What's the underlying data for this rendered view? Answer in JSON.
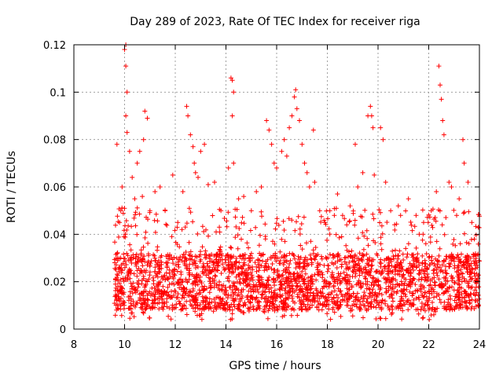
{
  "chart_data": {
    "type": "scatter",
    "title": "Day 289 of 2023, Rate Of TEC Index for receiver riga",
    "xlabel": "GPS time / hours",
    "ylabel": "ROTI / TECUs",
    "xlim": [
      8,
      24
    ],
    "ylim": [
      0,
      0.12
    ],
    "x_ticks": [
      8,
      10,
      12,
      14,
      16,
      18,
      20,
      22,
      24
    ],
    "x_tick_labels": [
      "8",
      "10",
      "12",
      "14",
      "16",
      "18",
      "20",
      "22",
      "24"
    ],
    "y_ticks": [
      0,
      0.02,
      0.04,
      0.06,
      0.08,
      0.1,
      0.12
    ],
    "y_tick_labels": [
      "0",
      "0.02",
      "0.04",
      "0.06",
      "0.08",
      "0.1",
      "0.12"
    ],
    "grid": true,
    "marker": "+",
    "series": [
      {
        "name": "ROTI riga",
        "color": "#ff0000",
        "points": [
          [
            9.7,
            0.078
          ],
          [
            9.8,
            0.045
          ],
          [
            9.85,
            0.05
          ],
          [
            9.9,
            0.06
          ],
          [
            10.0,
            0.118
          ],
          [
            10.05,
            0.12
          ],
          [
            10.05,
            0.111
          ],
          [
            10.1,
            0.1
          ],
          [
            10.05,
            0.09
          ],
          [
            10.1,
            0.083
          ],
          [
            10.2,
            0.075
          ],
          [
            10.3,
            0.064
          ],
          [
            10.4,
            0.055
          ],
          [
            10.5,
            0.07
          ],
          [
            10.6,
            0.075
          ],
          [
            10.75,
            0.08
          ],
          [
            10.8,
            0.092
          ],
          [
            10.9,
            0.089
          ],
          [
            10.7,
            0.056
          ],
          [
            11.0,
            0.05
          ],
          [
            11.2,
            0.058
          ],
          [
            11.4,
            0.06
          ],
          [
            11.6,
            0.05
          ],
          [
            11.9,
            0.065
          ],
          [
            12.1,
            0.045
          ],
          [
            12.3,
            0.058
          ],
          [
            12.45,
            0.094
          ],
          [
            12.5,
            0.09
          ],
          [
            12.6,
            0.082
          ],
          [
            12.7,
            0.077
          ],
          [
            12.75,
            0.07
          ],
          [
            12.8,
            0.066
          ],
          [
            12.9,
            0.064
          ],
          [
            13.0,
            0.075
          ],
          [
            13.15,
            0.078
          ],
          [
            13.3,
            0.061
          ],
          [
            13.55,
            0.062
          ],
          [
            13.8,
            0.05
          ],
          [
            14.1,
            0.068
          ],
          [
            14.2,
            0.106
          ],
          [
            14.25,
            0.105
          ],
          [
            14.3,
            0.1
          ],
          [
            14.25,
            0.09
          ],
          [
            14.3,
            0.07
          ],
          [
            14.5,
            0.055
          ],
          [
            14.7,
            0.056
          ],
          [
            15.0,
            0.05
          ],
          [
            15.2,
            0.058
          ],
          [
            15.4,
            0.06
          ],
          [
            15.6,
            0.088
          ],
          [
            15.7,
            0.084
          ],
          [
            15.8,
            0.078
          ],
          [
            15.9,
            0.07
          ],
          [
            16.0,
            0.068
          ],
          [
            16.2,
            0.075
          ],
          [
            16.3,
            0.08
          ],
          [
            16.4,
            0.073
          ],
          [
            16.5,
            0.085
          ],
          [
            16.6,
            0.09
          ],
          [
            16.7,
            0.098
          ],
          [
            16.75,
            0.101
          ],
          [
            16.8,
            0.093
          ],
          [
            16.9,
            0.088
          ],
          [
            17.0,
            0.078
          ],
          [
            17.1,
            0.07
          ],
          [
            17.2,
            0.066
          ],
          [
            17.3,
            0.06
          ],
          [
            17.45,
            0.084
          ],
          [
            17.5,
            0.062
          ],
          [
            17.7,
            0.05
          ],
          [
            17.9,
            0.045
          ],
          [
            18.1,
            0.05
          ],
          [
            18.4,
            0.057
          ],
          [
            18.6,
            0.048
          ],
          [
            18.9,
            0.052
          ],
          [
            19.1,
            0.078
          ],
          [
            19.2,
            0.06
          ],
          [
            19.4,
            0.066
          ],
          [
            19.6,
            0.09
          ],
          [
            19.7,
            0.094
          ],
          [
            19.75,
            0.09
          ],
          [
            19.8,
            0.085
          ],
          [
            19.85,
            0.065
          ],
          [
            20.1,
            0.085
          ],
          [
            20.2,
            0.08
          ],
          [
            20.3,
            0.062
          ],
          [
            20.5,
            0.05
          ],
          [
            20.8,
            0.052
          ],
          [
            21.2,
            0.055
          ],
          [
            21.5,
            0.048
          ],
          [
            21.8,
            0.045
          ],
          [
            22.1,
            0.05
          ],
          [
            22.3,
            0.058
          ],
          [
            22.4,
            0.111
          ],
          [
            22.45,
            0.103
          ],
          [
            22.5,
            0.097
          ],
          [
            22.55,
            0.088
          ],
          [
            22.6,
            0.082
          ],
          [
            22.8,
            0.062
          ],
          [
            22.9,
            0.06
          ],
          [
            23.1,
            0.048
          ],
          [
            23.2,
            0.055
          ],
          [
            23.35,
            0.08
          ],
          [
            23.4,
            0.07
          ],
          [
            23.55,
            0.062
          ],
          [
            23.7,
            0.045
          ],
          [
            23.8,
            0.038
          ],
          [
            23.95,
            0.043
          ]
        ],
        "band": {
          "x_range": [
            9.6,
            24.0
          ],
          "typical_low": 0.008,
          "typical_high": 0.04,
          "min": 0.004
        }
      }
    ]
  }
}
